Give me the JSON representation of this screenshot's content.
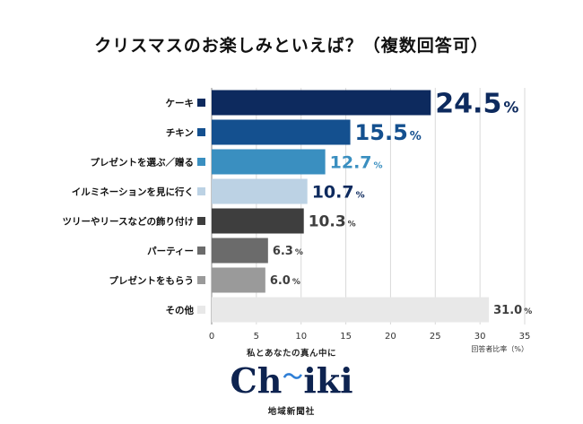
{
  "title": "クリスマスのお楽しみといえば？（複数回答可）",
  "chart_data": {
    "type": "bar",
    "orientation": "horizontal",
    "title": "クリスマスのお楽しみといえば？（複数回答可）",
    "categories": [
      "ケーキ",
      "チキン",
      "プレゼントを選ぶ／贈る",
      "イルミネーションを見に行く",
      "ツリーやリースなどの飾り付け",
      "パーティー",
      "プレゼントをもらう",
      "その他"
    ],
    "values": [
      24.5,
      15.5,
      12.7,
      10.7,
      10.3,
      6.3,
      6.0,
      31.0
    ],
    "value_labels": [
      {
        "num": "24.5",
        "unit": "%"
      },
      {
        "num": "15.5",
        "unit": "%"
      },
      {
        "num": "12.7",
        "unit": "%"
      },
      {
        "num": "10.7",
        "unit": "%"
      },
      {
        "num": "10.3",
        "unit": "%"
      },
      {
        "num": "6.3",
        "unit": "%"
      },
      {
        "num": "6.0",
        "unit": "%"
      },
      {
        "num": "31.0",
        "unit": "%"
      }
    ],
    "colors": [
      "#0d2a5e",
      "#14508f",
      "#3a8fc0",
      "#bcd2e4",
      "#3e3e3e",
      "#6b6b6b",
      "#9a9a9a",
      "#e8e8e8"
    ],
    "label_colors": [
      "#0d2a5e",
      "#14508f",
      "#3a8fc0",
      "#0d2a5e",
      "#3e3e3e",
      "#3e3e3e",
      "#3e3e3e",
      "#3e3e3e"
    ],
    "xlim": [
      0,
      35
    ],
    "xticks": [
      0,
      5,
      10,
      15,
      20,
      25,
      30,
      35
    ],
    "xlabel": "回答者比率（%）",
    "grid": true
  },
  "branding": {
    "tagline": "私とあなたの真ん中に",
    "logo_left": "Ch",
    "logo_mid": "〜",
    "logo_right": "iki",
    "company": "地域新聞社"
  }
}
